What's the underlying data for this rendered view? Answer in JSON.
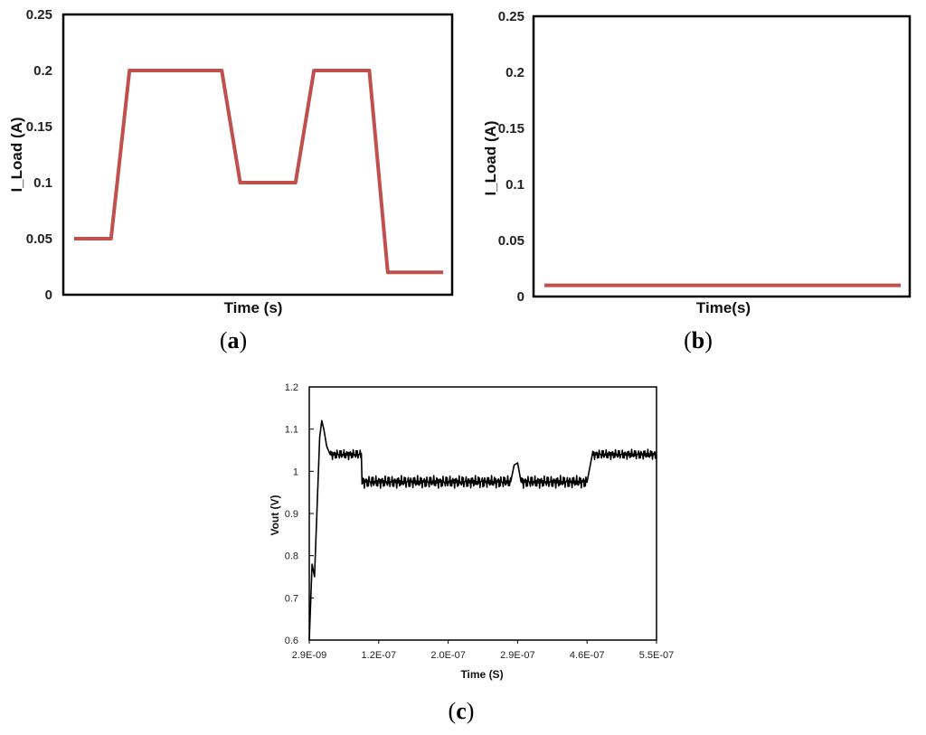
{
  "chart_data": [
    {
      "type": "line",
      "panel_label": "a",
      "title": "",
      "xlabel": "Time (s)",
      "ylabel": "I_Load (A)",
      "ylim": [
        0,
        0.25
      ],
      "yticks": [
        "0",
        "0.05",
        "0.1",
        "0.15",
        "0.2",
        "0.25"
      ],
      "xlim": [
        0,
        100
      ],
      "grid": false,
      "color": "#c0504d",
      "series": [
        {
          "x": [
            0,
            10,
            15,
            40,
            45,
            60,
            65,
            80,
            85,
            100
          ],
          "values": [
            0.05,
            0.05,
            0.2,
            0.2,
            0.1,
            0.1,
            0.2,
            0.2,
            0.02,
            0.02
          ]
        }
      ]
    },
    {
      "type": "line",
      "panel_label": "b",
      "title": "",
      "xlabel": "Time(s)",
      "ylabel": "I_Load (A)",
      "ylim": [
        0,
        0.25
      ],
      "yticks": [
        "0",
        "0.05",
        "0.1",
        "0.15",
        "0.2",
        "0.25"
      ],
      "xlim": [
        0,
        100
      ],
      "grid": false,
      "color": "#c0504d",
      "series": [
        {
          "x": [
            0,
            100
          ],
          "values": [
            0.01,
            0.01
          ]
        }
      ]
    },
    {
      "type": "line",
      "panel_label": "c",
      "title": "",
      "xlabel": "Time (S)",
      "ylabel": "Vout (V)",
      "ylim": [
        0.6,
        1.2
      ],
      "yticks": [
        "0.6",
        "0.7",
        "0.8",
        "0.9",
        "1",
        "1.1",
        "1.2"
      ],
      "xticks": [
        "2.9E-09",
        "1.2E-07",
        "2.0E-07",
        "2.9E-07",
        "4.6E-07",
        "5.5E-07"
      ],
      "xlim": [
        0,
        100
      ],
      "grid": false,
      "color": "#000000",
      "series": [
        {
          "segments": [
            {
              "x": [
                0,
                0.8,
                1.5,
                2.2,
                3,
                3.6,
                4.2,
                5,
                6
              ],
              "values": [
                0.6,
                0.78,
                0.75,
                0.9,
                1.08,
                1.12,
                1.1,
                1.06,
                1.04
              ]
            },
            {
              "x0": 6,
              "x1": 15,
              "mid": 1.04,
              "amp": 0.012
            },
            {
              "x": [
                15,
                15.2
              ],
              "values": [
                1.04,
                0.97
              ]
            },
            {
              "x0": 15.2,
              "x1": 58,
              "mid": 0.975,
              "amp": 0.015
            },
            {
              "x": [
                58,
                59,
                60,
                61
              ],
              "values": [
                0.975,
                1.015,
                1.02,
                0.975
              ]
            },
            {
              "x0": 61,
              "x1": 80,
              "mid": 0.975,
              "amp": 0.015
            },
            {
              "x": [
                80,
                81.5
              ],
              "values": [
                0.975,
                1.04
              ]
            },
            {
              "x0": 81.5,
              "x1": 100,
              "mid": 1.04,
              "amp": 0.012
            }
          ]
        }
      ]
    }
  ]
}
